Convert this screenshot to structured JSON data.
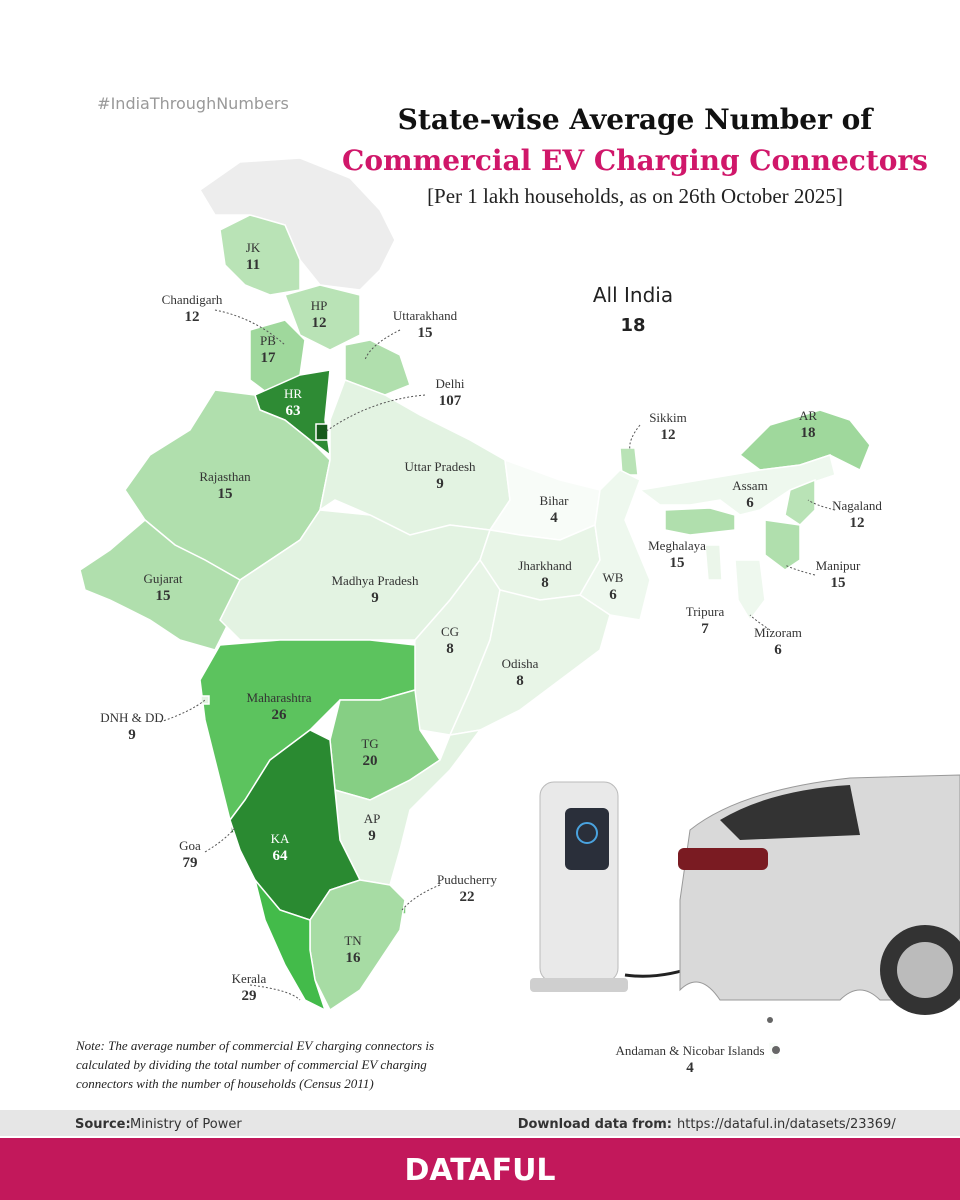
{
  "hashtag": "#IndiaThroughNumbers",
  "title": {
    "line1": "State-wise Average Number of",
    "line2": "Commercial EV Charging Connectors",
    "subtitle": "[Per 1 lakh households, as on 26th October 2025]"
  },
  "all_india": {
    "label": "All India",
    "value": 18
  },
  "regions": [
    {
      "name": "JK",
      "value": 11,
      "color": "#b9e3b6"
    },
    {
      "name": "Chandigarh",
      "value": 12,
      "color": "#b9e3b6"
    },
    {
      "name": "HP",
      "value": 12,
      "color": "#b9e3b6"
    },
    {
      "name": "Uttarakhand",
      "value": 15,
      "color": "#b0dfad"
    },
    {
      "name": "PB",
      "value": 17,
      "color": "#9fd89c"
    },
    {
      "name": "HR",
      "value": 63,
      "color": "#2e8b34"
    },
    {
      "name": "Delhi",
      "value": 107,
      "color": "#17591c"
    },
    {
      "name": "Rajasthan",
      "value": 15,
      "color": "#b0dfad"
    },
    {
      "name": "Uttar Pradesh",
      "value": 9,
      "color": "#e3f3e2"
    },
    {
      "name": "Bihar",
      "value": 4,
      "color": "#f8fcf8"
    },
    {
      "name": "Sikkim",
      "value": 12,
      "color": "#b9e3b6"
    },
    {
      "name": "AR",
      "value": 18,
      "color": "#9fd89c"
    },
    {
      "name": "Assam",
      "value": 6,
      "color": "#eef8ee"
    },
    {
      "name": "Nagaland",
      "value": 12,
      "color": "#b9e3b6"
    },
    {
      "name": "Meghalaya",
      "value": 15,
      "color": "#b0dfad"
    },
    {
      "name": "Manipur",
      "value": 15,
      "color": "#b0dfad"
    },
    {
      "name": "Gujarat",
      "value": 15,
      "color": "#b0dfad"
    },
    {
      "name": "Madhya Pradesh",
      "value": 9,
      "color": "#e3f3e2"
    },
    {
      "name": "Jharkhand",
      "value": 8,
      "color": "#e8f5e7"
    },
    {
      "name": "WB",
      "value": 6,
      "color": "#eef8ee"
    },
    {
      "name": "Tripura",
      "value": 7,
      "color": "#ebf6ea"
    },
    {
      "name": "Mizoram",
      "value": 6,
      "color": "#eef8ee"
    },
    {
      "name": "CG",
      "value": 8,
      "color": "#e8f5e7"
    },
    {
      "name": "Odisha",
      "value": 8,
      "color": "#e8f5e7"
    },
    {
      "name": "Maharashtra",
      "value": 26,
      "color": "#5cc35e"
    },
    {
      "name": "DNH & DD",
      "value": 9,
      "color": "#e3f3e2"
    },
    {
      "name": "TG",
      "value": 20,
      "color": "#86cf84"
    },
    {
      "name": "AP",
      "value": 9,
      "color": "#e3f3e2"
    },
    {
      "name": "Goa",
      "value": 79,
      "color": "#1f6e25"
    },
    {
      "name": "KA",
      "value": 64,
      "color": "#2a8a31"
    },
    {
      "name": "Puducherry",
      "value": 22,
      "color": "#7bcb7a"
    },
    {
      "name": "TN",
      "value": 16,
      "color": "#a7dca4"
    },
    {
      "name": "Kerala",
      "value": 29,
      "color": "#43bb4a"
    },
    {
      "name": "Andaman & Nicobar Islands",
      "value": 4,
      "color": "#f8fcf8"
    }
  ],
  "note": "Note:  The average number of  commercial EV charging connectors is calculated by dividing the total number of  commercial EV charging connectors with the number of households (Census 2011)",
  "footer": {
    "source_label": "Source:",
    "source": "Ministry of Power",
    "download_label": "Download data from:",
    "download_url": "https://dataful.in/datasets/23369/"
  },
  "brand": "DATAFUL"
}
